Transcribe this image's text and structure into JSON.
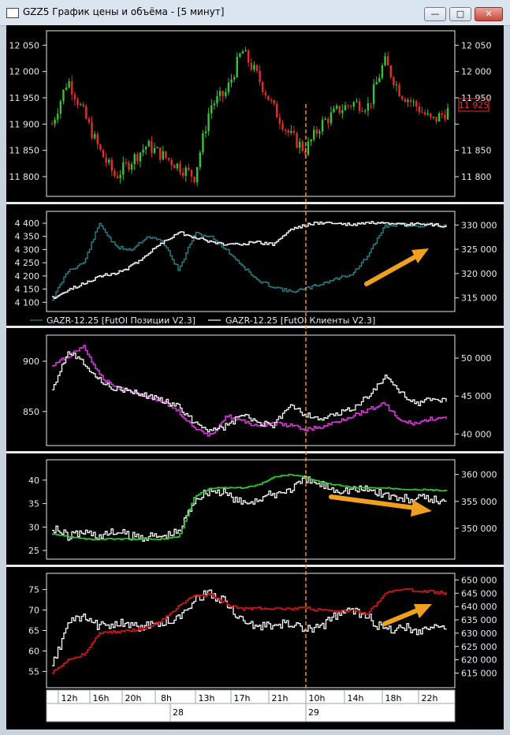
{
  "window": {
    "title": "GZZ5 График цены и объёма - [5 минут]",
    "icon": "chart-window-icon",
    "buttons": {
      "minimize": "minimize-icon",
      "maximize": "maximize-icon",
      "close": "close-icon"
    }
  },
  "annotations": {
    "vertical_marker_color": "#f0a020",
    "arrow_color": "#f0a020"
  },
  "colors": {
    "background": "#000000",
    "frame": "#e6eaee",
    "candle_up": "#35c435",
    "candle_down": "#e0302a",
    "teal": "#2a7f86",
    "white": "#ffffff",
    "magenta": "#d03ad0",
    "green": "#35c435",
    "red": "#c81a1a",
    "price_tag": "#e0302a"
  },
  "time_axis": {
    "hours": [
      "12h",
      "16h",
      "20h",
      "8h",
      "13h",
      "17h",
      "21h",
      "10h",
      "14h",
      "18h",
      "22h"
    ],
    "days": [
      "28",
      "29"
    ]
  },
  "chart_data": [
    {
      "type": "candlestick",
      "panel": "price",
      "ylim": [
        11770,
        12070
      ],
      "left_ticks": [
        "12 050",
        "12 000",
        "11 950",
        "11 900",
        "11 850",
        "11 800"
      ],
      "right_ticks": [
        "12 050",
        "12 000",
        "11 950",
        "11 900",
        "11 850",
        "11 800"
      ],
      "last_price_label": "11 925",
      "x": [
        0,
        1,
        2,
        3,
        4,
        5,
        6,
        7,
        8,
        9,
        10,
        11,
        12,
        13,
        14,
        15,
        16,
        17,
        18,
        19,
        20,
        21,
        22,
        23,
        24,
        25
      ],
      "close": [
        11900,
        11985,
        11920,
        11850,
        11800,
        11830,
        11860,
        11840,
        11820,
        11800,
        11935,
        11960,
        12040,
        11990,
        11930,
        11880,
        11850,
        11900,
        11925,
        11940,
        11935,
        12020,
        11960,
        11935,
        11905,
        11925
      ]
    },
    {
      "type": "line",
      "panel": "futoi-positions",
      "left_ticks": [
        "4 400",
        "4 350",
        "4 300",
        "4 250",
        "4 200",
        "4 150",
        "4 100"
      ],
      "right_ticks": [
        "330 000",
        "325 000",
        "320 000",
        "315 000"
      ],
      "legend": [
        "GAZR-12.25 [FutOI Позиции V2.3]",
        "GAZR-12.25 [FutOI Клиенты V2.3]"
      ],
      "series": [
        {
          "name": "GAZR-12.25 [FutOI Позиции V2.3]",
          "axis": "left",
          "color": "#2a7f86",
          "x": [
            0,
            1,
            2,
            3,
            4,
            5,
            6,
            7,
            8,
            9,
            10,
            11,
            12,
            13,
            14,
            15,
            16,
            17,
            18,
            19,
            20,
            21,
            22,
            23,
            24,
            25
          ],
          "values": [
            4110,
            4220,
            4250,
            4400,
            4310,
            4300,
            4350,
            4330,
            4220,
            4360,
            4350,
            4300,
            4240,
            4180,
            4160,
            4140,
            4150,
            4170,
            4190,
            4210,
            4280,
            4390,
            4395,
            4390,
            4395,
            4390
          ]
        },
        {
          "name": "GAZR-12.25 [FutOI Клиенты V2.3]",
          "axis": "right",
          "color": "#ffffff",
          "x": [
            0,
            1,
            2,
            3,
            4,
            5,
            6,
            7,
            8,
            9,
            10,
            11,
            12,
            13,
            14,
            15,
            16,
            17,
            18,
            19,
            20,
            21,
            22,
            23,
            24,
            25
          ],
          "values": [
            315000,
            316500,
            318000,
            319500,
            320000,
            321500,
            324000,
            326500,
            328500,
            327500,
            326500,
            326000,
            326200,
            326400,
            326000,
            329000,
            330000,
            330500,
            330300,
            330000,
            330500,
            330200,
            330000,
            330200,
            330000,
            329800
          ]
        }
      ]
    },
    {
      "type": "line",
      "panel": "indicator-3",
      "left_ticks": [
        "900",
        "850"
      ],
      "right_ticks": [
        "50 000",
        "45 000",
        "40 000"
      ],
      "series": [
        {
          "axis": "left",
          "color": "#d03ad0",
          "x": [
            0,
            1,
            2,
            3,
            4,
            5,
            6,
            7,
            8,
            9,
            10,
            11,
            12,
            13,
            14,
            15,
            16,
            17,
            18,
            19,
            20,
            21,
            22,
            23,
            24,
            25
          ],
          "values": [
            895,
            905,
            915,
            885,
            875,
            870,
            865,
            860,
            850,
            832,
            826,
            846,
            840,
            836,
            838,
            836,
            832,
            834,
            840,
            846,
            852,
            858,
            840,
            838,
            843,
            842
          ]
        },
        {
          "axis": "right",
          "color": "#ffffff",
          "x": [
            0,
            1,
            2,
            3,
            4,
            5,
            6,
            7,
            8,
            9,
            10,
            11,
            12,
            13,
            14,
            15,
            16,
            17,
            18,
            19,
            20,
            21,
            22,
            23,
            24,
            25
          ],
          "values": [
            46000,
            51000,
            49500,
            47000,
            46000,
            45500,
            45000,
            44500,
            43500,
            41500,
            40500,
            41000,
            42500,
            41500,
            41000,
            44000,
            42500,
            42000,
            42500,
            43500,
            45000,
            47500,
            45500,
            44000,
            44500,
            44400
          ]
        }
      ]
    },
    {
      "type": "line",
      "panel": "indicator-4",
      "left_ticks": [
        "40",
        "35",
        "30",
        "25"
      ],
      "right_ticks": [
        "360 000",
        "355 000",
        "350 000"
      ],
      "series": [
        {
          "axis": "right",
          "color": "#35c435",
          "x": [
            0,
            1,
            2,
            3,
            4,
            5,
            6,
            7,
            8,
            9,
            10,
            11,
            12,
            13,
            14,
            15,
            16,
            17,
            18,
            19,
            20,
            21,
            22,
            23,
            24,
            25
          ],
          "values": [
            349000,
            348500,
            348000,
            348000,
            348000,
            348000,
            348000,
            348000,
            348500,
            356000,
            357500,
            357500,
            357500,
            358000,
            359500,
            360000,
            359500,
            358500,
            358000,
            357500,
            357500,
            357500,
            357300,
            357200,
            357100,
            357000
          ]
        },
        {
          "axis": "left",
          "color": "#ffffff",
          "x": [
            0,
            1,
            2,
            3,
            4,
            5,
            6,
            7,
            8,
            9,
            10,
            11,
            12,
            13,
            14,
            15,
            16,
            17,
            18,
            19,
            20,
            21,
            22,
            23,
            24,
            25
          ],
          "values": [
            30,
            28,
            29,
            28,
            29,
            28,
            28,
            28,
            29,
            36,
            38,
            37,
            35,
            36,
            37,
            38,
            40,
            39,
            38,
            38,
            38,
            37,
            36,
            36,
            36,
            35
          ]
        }
      ]
    },
    {
      "type": "line",
      "panel": "indicator-5",
      "left_ticks": [
        "75",
        "70",
        "65",
        "60",
        "55"
      ],
      "right_ticks": [
        "650 000",
        "645 000",
        "640 000",
        "635 000",
        "630 000",
        "625 000",
        "620 000",
        "615 000"
      ],
      "series": [
        {
          "axis": "right",
          "color": "#c81a1a",
          "x": [
            0,
            1,
            2,
            3,
            4,
            5,
            6,
            7,
            8,
            9,
            10,
            11,
            12,
            13,
            14,
            15,
            16,
            17,
            18,
            19,
            20,
            21,
            22,
            23,
            24,
            25
          ],
          "values": [
            615000,
            620000,
            622000,
            630000,
            630500,
            631000,
            632000,
            635000,
            640000,
            644000,
            644500,
            641000,
            639000,
            639500,
            639500,
            639000,
            639500,
            638500,
            638000,
            638500,
            637500,
            645000,
            646500,
            646000,
            645500,
            645000
          ]
        },
        {
          "axis": "left",
          "color": "#ffffff",
          "x": [
            0,
            1,
            2,
            3,
            4,
            5,
            6,
            7,
            8,
            9,
            10,
            11,
            12,
            13,
            14,
            15,
            16,
            17,
            18,
            19,
            20,
            21,
            22,
            23,
            24,
            25
          ],
          "values": [
            56,
            67,
            68,
            66,
            67,
            66,
            66,
            67,
            68,
            73,
            74,
            72,
            67,
            66,
            66,
            67,
            65,
            66,
            69,
            70,
            68,
            65,
            66,
            65,
            66,
            66
          ]
        }
      ]
    }
  ]
}
